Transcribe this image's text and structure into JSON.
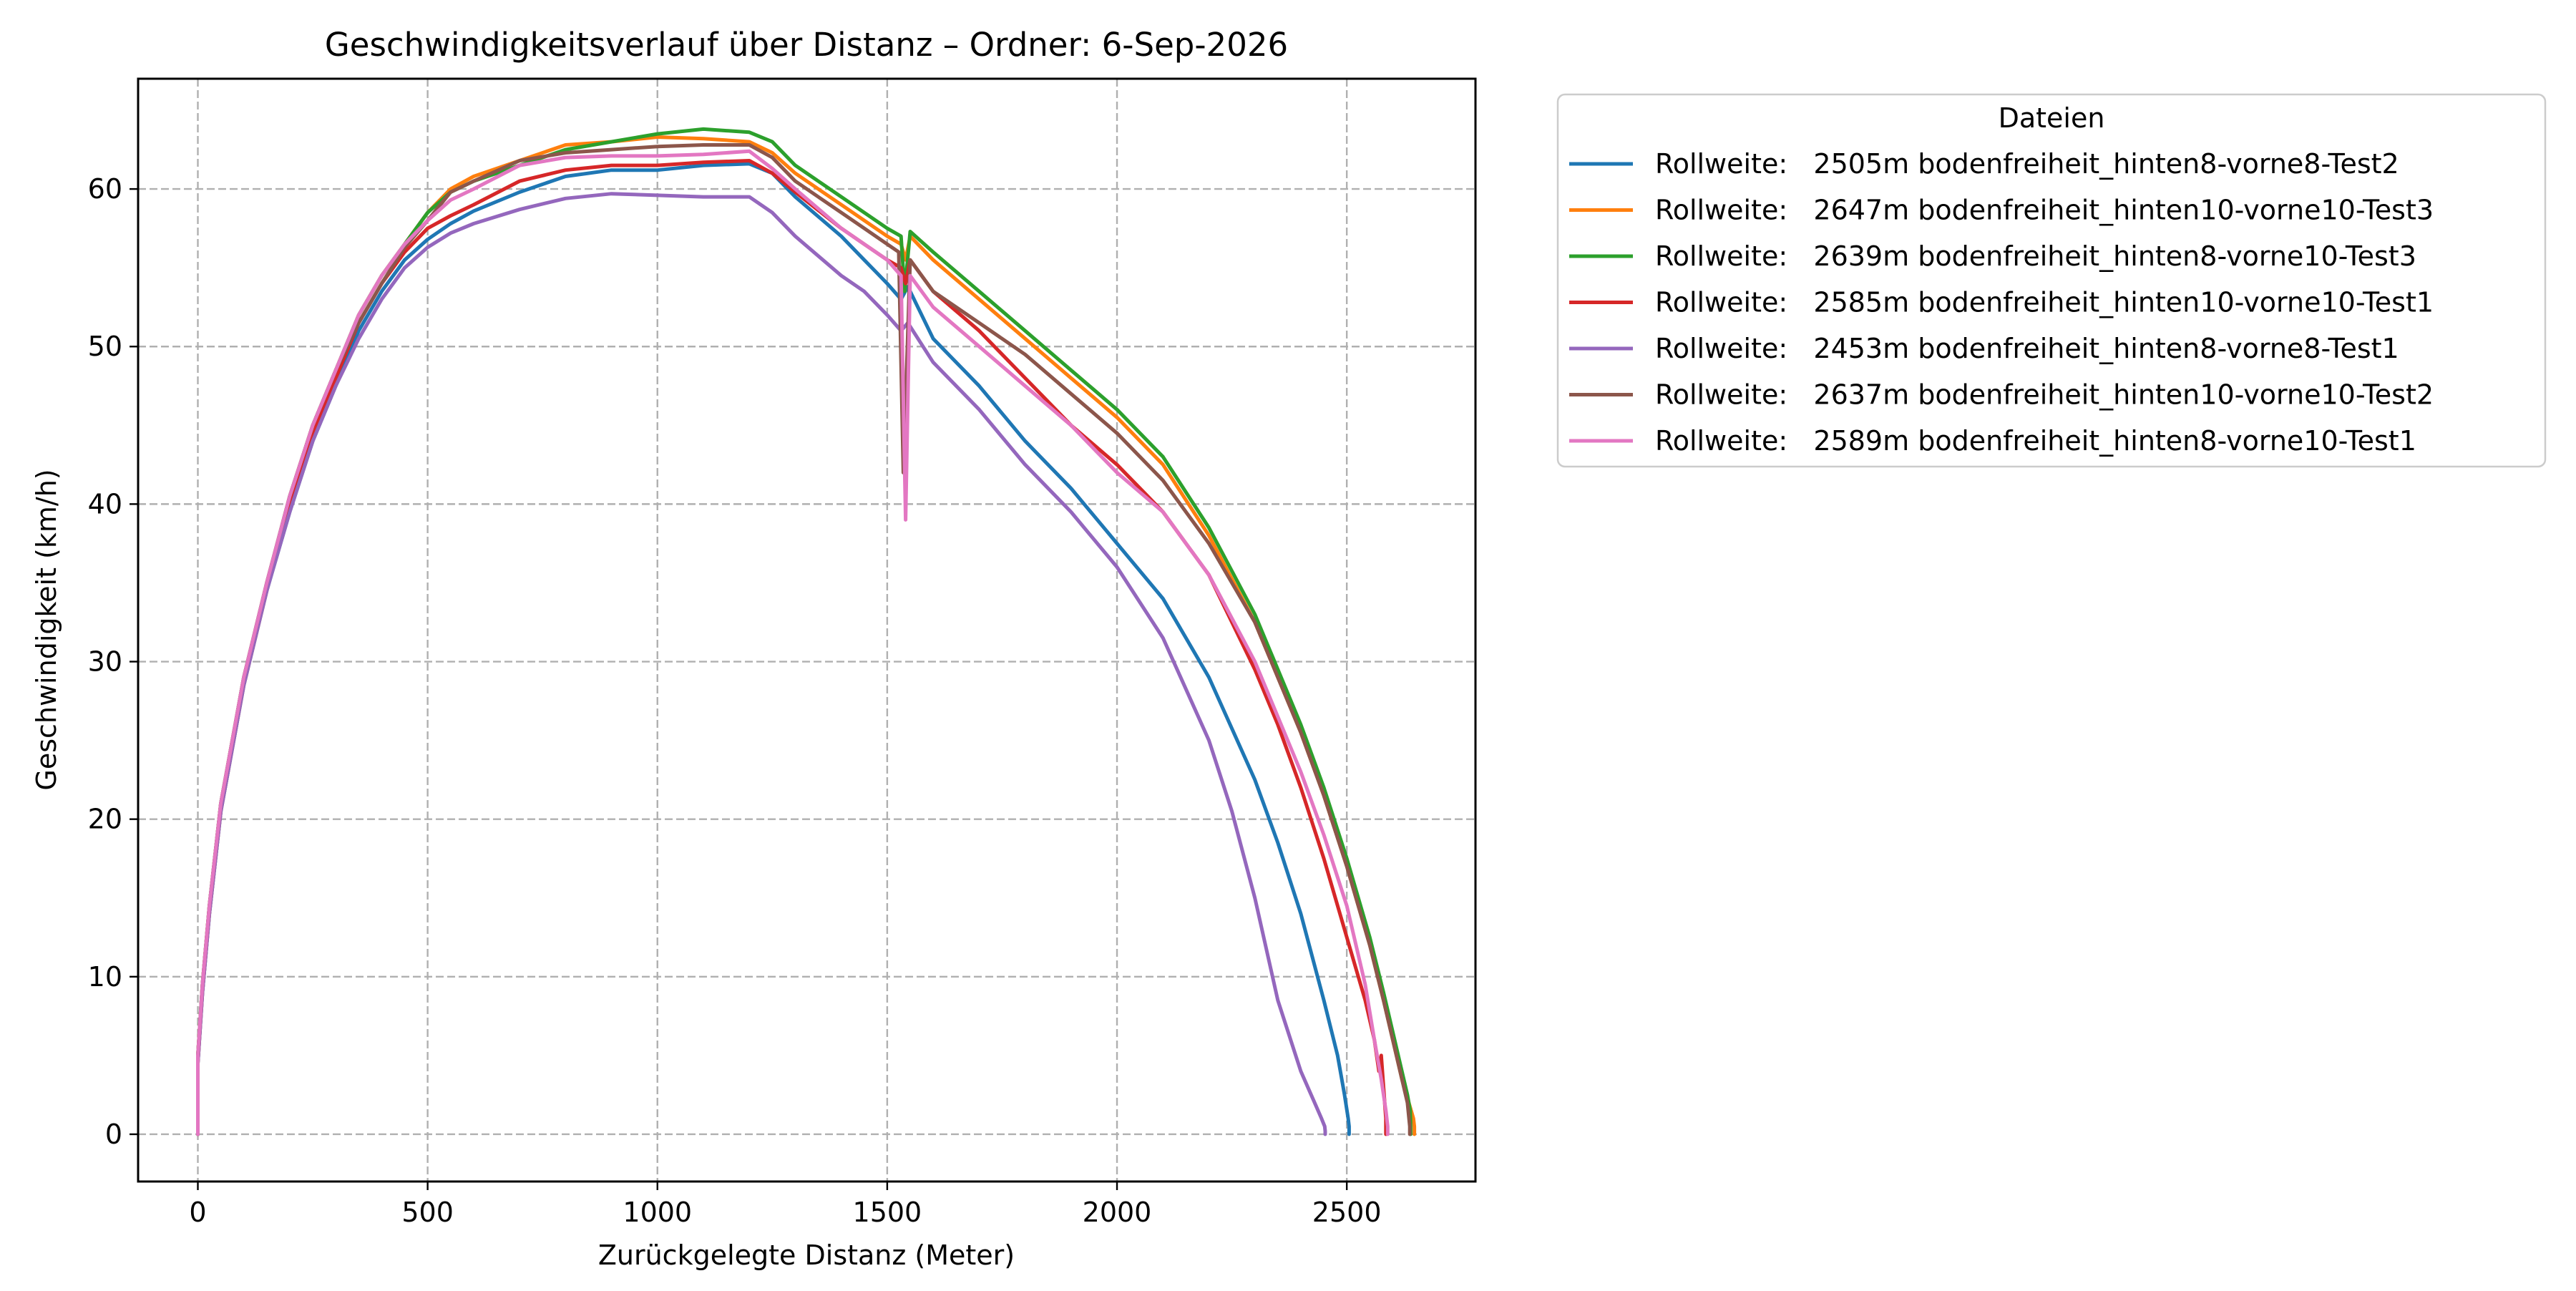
{
  "chart_data": {
    "type": "line",
    "title": "Geschwindigkeitsverlauf über Distanz – Ordner: 6-Sep-2026",
    "xlabel": "Zurückgelegte Distanz (Meter)",
    "ylabel": "Geschwindigkeit (km/h)",
    "xlim": [
      -130,
      2780
    ],
    "ylim": [
      -3,
      67
    ],
    "xticks": [
      0,
      500,
      1000,
      1500,
      2000,
      2500
    ],
    "yticks": [
      0,
      10,
      20,
      30,
      40,
      50,
      60
    ],
    "grid": true,
    "legend": {
      "title": "Dateien",
      "placement": "outside-right"
    },
    "series": [
      {
        "name": "Rollweite:   2505m bodenfreiheit_hinten8-vorne8-Test2",
        "color": "#1f77b4",
        "x": [
          0,
          0,
          10,
          25,
          50,
          100,
          150,
          200,
          250,
          300,
          350,
          400,
          450,
          500,
          550,
          600,
          700,
          800,
          900,
          1000,
          1100,
          1200,
          1250,
          1300,
          1400,
          1450,
          1500,
          1530,
          1545,
          1600,
          1700,
          1800,
          1900,
          2000,
          2100,
          2200,
          2300,
          2350,
          2400,
          2450,
          2480,
          2495,
          2503,
          2505,
          2505
        ],
        "y": [
          0,
          4.5,
          9,
          14,
          20.5,
          28.5,
          34.5,
          39.5,
          44,
          47.5,
          51,
          53.5,
          55.5,
          56.8,
          57.8,
          58.6,
          59.8,
          60.8,
          61.2,
          61.2,
          61.5,
          61.6,
          61,
          59.5,
          57,
          55.5,
          54,
          53,
          53.8,
          50.5,
          47.5,
          44,
          41,
          37.5,
          34,
          29,
          22.5,
          18.5,
          14,
          8.5,
          5,
          2.5,
          1,
          0.5,
          0
        ]
      },
      {
        "name": "Rollweite:   2647m bodenfreiheit_hinten10-vorne10-Test3",
        "color": "#ff7f0e",
        "x": [
          0,
          0,
          10,
          25,
          50,
          100,
          150,
          200,
          250,
          300,
          350,
          400,
          450,
          500,
          550,
          600,
          700,
          800,
          900,
          1000,
          1100,
          1200,
          1250,
          1300,
          1400,
          1450,
          1500,
          1530,
          1540,
          1550,
          1600,
          1700,
          1800,
          1900,
          2000,
          2100,
          2200,
          2300,
          2350,
          2400,
          2450,
          2500,
          2550,
          2580,
          2600,
          2620,
          2635,
          2645,
          2647,
          2647
        ],
        "y": [
          0,
          5,
          9.5,
          14.5,
          21,
          29,
          35,
          40.5,
          45,
          48.5,
          52,
          54.5,
          56.5,
          58.5,
          60,
          60.8,
          61.8,
          62.8,
          63,
          63.3,
          63.2,
          63,
          62.3,
          61,
          59,
          58,
          57,
          56.5,
          55.5,
          57,
          55.5,
          53,
          50.5,
          48,
          45.5,
          42.5,
          38,
          32.5,
          29,
          25.5,
          21.5,
          17,
          12,
          8.5,
          6,
          3.5,
          2,
          1,
          0.5,
          0
        ]
      },
      {
        "name": "Rollweite:   2639m bodenfreiheit_hinten8-vorne10-Test3",
        "color": "#2ca02c",
        "x": [
          0,
          0,
          10,
          25,
          50,
          100,
          150,
          200,
          250,
          300,
          350,
          400,
          450,
          500,
          550,
          600,
          700,
          800,
          900,
          1000,
          1100,
          1200,
          1250,
          1300,
          1400,
          1450,
          1500,
          1530,
          1538,
          1550,
          1600,
          1700,
          1800,
          1900,
          2000,
          2100,
          2200,
          2300,
          2350,
          2400,
          2450,
          2500,
          2550,
          2580,
          2600,
          2620,
          2632,
          2638,
          2639,
          2639
        ],
        "y": [
          0,
          5,
          9.5,
          14.5,
          21,
          29,
          35,
          40.5,
          45,
          48.5,
          52,
          54.5,
          56.5,
          58.5,
          59.8,
          60.5,
          61.5,
          62.5,
          63,
          63.5,
          63.8,
          63.6,
          63,
          61.5,
          59.5,
          58.5,
          57.5,
          57,
          53.5,
          57.3,
          56,
          53.5,
          51,
          48.5,
          46,
          43,
          38.5,
          33,
          29.5,
          26,
          22,
          17.5,
          12.5,
          9,
          6.5,
          4,
          2.5,
          1.5,
          0.5,
          0
        ]
      },
      {
        "name": "Rollweite:   2585m bodenfreiheit_hinten10-vorne10-Test1",
        "color": "#d62728",
        "x": [
          0,
          0,
          10,
          25,
          50,
          100,
          150,
          200,
          250,
          300,
          350,
          400,
          450,
          500,
          550,
          600,
          700,
          800,
          900,
          1000,
          1100,
          1200,
          1250,
          1300,
          1400,
          1450,
          1500,
          1530,
          1540,
          1550,
          1600,
          1700,
          1800,
          1900,
          2000,
          2100,
          2200,
          2300,
          2350,
          2400,
          2450,
          2500,
          2540,
          2560,
          2570,
          2575,
          2580,
          2585,
          2585
        ],
        "y": [
          0,
          4.5,
          9,
          14,
          20.5,
          28.5,
          34.5,
          40,
          44.5,
          48,
          51.5,
          54,
          56,
          57.5,
          58.3,
          59,
          60.5,
          61.2,
          61.5,
          61.5,
          61.7,
          61.8,
          61,
          59.8,
          57.5,
          56.5,
          55.5,
          55,
          54,
          55.5,
          53.5,
          51,
          48,
          45,
          42.5,
          39.5,
          35.5,
          29.5,
          26,
          22,
          17.5,
          12.5,
          8.5,
          6,
          4,
          5,
          3,
          1,
          0
        ]
      },
      {
        "name": "Rollweite:   2453m bodenfreiheit_hinten8-vorne8-Test1",
        "color": "#9467bd",
        "x": [
          0,
          0,
          10,
          25,
          50,
          100,
          150,
          200,
          250,
          300,
          350,
          400,
          450,
          500,
          550,
          600,
          700,
          800,
          900,
          1000,
          1100,
          1200,
          1250,
          1300,
          1400,
          1450,
          1500,
          1530,
          1545,
          1600,
          1700,
          1800,
          1900,
          2000,
          2100,
          2200,
          2250,
          2300,
          2350,
          2400,
          2430,
          2445,
          2452,
          2453,
          2453
        ],
        "y": [
          0,
          4.5,
          9,
          14,
          20.5,
          28.5,
          34.5,
          39.5,
          44,
          47.5,
          50.5,
          53,
          55,
          56.3,
          57.2,
          57.8,
          58.7,
          59.4,
          59.7,
          59.6,
          59.5,
          59.5,
          58.5,
          57,
          54.5,
          53.5,
          52,
          51,
          51.5,
          49,
          46,
          42.5,
          39.5,
          36,
          31.5,
          25,
          20.5,
          15,
          8.5,
          4,
          2,
          1,
          0.5,
          0.2,
          0
        ]
      },
      {
        "name": "Rollweite:   2637m bodenfreiheit_hinten10-vorne10-Test2",
        "color": "#8c564b",
        "x": [
          0,
          0,
          10,
          25,
          50,
          100,
          150,
          200,
          250,
          300,
          350,
          400,
          450,
          500,
          550,
          600,
          700,
          800,
          900,
          1000,
          1100,
          1200,
          1250,
          1300,
          1400,
          1450,
          1500,
          1525,
          1535,
          1550,
          1600,
          1700,
          1800,
          1900,
          2000,
          2100,
          2200,
          2300,
          2350,
          2400,
          2450,
          2500,
          2550,
          2580,
          2600,
          2620,
          2632,
          2637,
          2637
        ],
        "y": [
          0,
          5,
          9.5,
          14.5,
          21,
          29,
          35,
          40.5,
          45,
          48.5,
          51.5,
          54,
          56.3,
          58,
          59.8,
          60.5,
          61.8,
          62.3,
          62.5,
          62.7,
          62.8,
          62.8,
          62,
          60.5,
          58.5,
          57.5,
          56.5,
          56,
          42,
          55.5,
          53.5,
          51.5,
          49.5,
          47,
          44.5,
          41.5,
          37.5,
          32.5,
          29,
          25.5,
          21.5,
          17,
          12,
          8.5,
          6,
          3.5,
          2,
          0.5,
          0
        ]
      },
      {
        "name": "Rollweite:   2589m bodenfreiheit_hinten8-vorne10-Test1",
        "color": "#e377c2",
        "x": [
          0,
          0,
          10,
          25,
          50,
          100,
          150,
          200,
          250,
          300,
          350,
          400,
          450,
          500,
          550,
          600,
          700,
          800,
          900,
          1000,
          1100,
          1200,
          1250,
          1300,
          1400,
          1450,
          1500,
          1530,
          1540,
          1550,
          1600,
          1700,
          1800,
          1900,
          2000,
          2100,
          2200,
          2300,
          2350,
          2400,
          2450,
          2500,
          2540,
          2560,
          2575,
          2585,
          2589,
          2589
        ],
        "y": [
          0,
          5,
          9.5,
          14.5,
          21,
          29,
          35,
          40.5,
          45,
          48.5,
          52,
          54.5,
          56.5,
          58,
          59.3,
          60,
          61.5,
          62,
          62.1,
          62.1,
          62.2,
          62.4,
          61.3,
          60,
          57.5,
          56.5,
          55.5,
          54.5,
          39,
          54.5,
          52.5,
          50,
          47.5,
          45,
          42,
          39.5,
          35.5,
          30,
          26.5,
          23,
          19,
          14.5,
          9.5,
          6,
          3.5,
          1.5,
          0.5,
          0
        ]
      }
    ]
  }
}
